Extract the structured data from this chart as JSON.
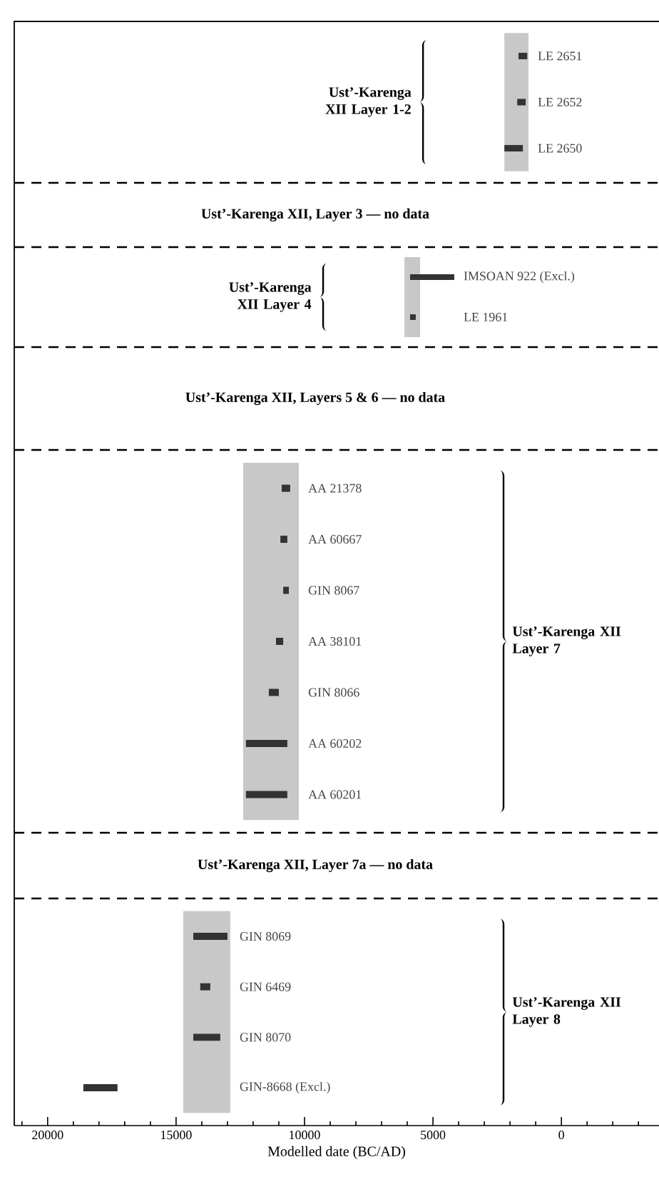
{
  "chart_data": [
    {
      "type": "bar",
      "orientation": "horizontal",
      "categories": [
        "LE 2651",
        "LE 2652",
        "LE 2650"
      ],
      "base": [
        1330,
        1390,
        1500
      ],
      "values": [
        340,
        330,
        720
      ],
      "color": "#333333",
      "bands": [
        {
          "axis": "x",
          "from": 2220,
          "to": 1280,
          "color": "#c8c8c8"
        }
      ],
      "annotations": [
        "Ust’-Karenga XII Layer 1-2"
      ],
      "xlim": [
        21300,
        -3800
      ],
      "tick_labels": false
    },
    {
      "type": "other",
      "title": "Ust’-Karenga XII, Layer 3 — no data"
    },
    {
      "type": "bar",
      "orientation": "horizontal",
      "categories": [
        "IMSOAN 922 (Excl.)",
        "LE 1961"
      ],
      "base": [
        4170,
        5670
      ],
      "values": [
        1720,
        220
      ],
      "color": "#333333",
      "bands": [
        {
          "axis": "x",
          "from": 6110,
          "to": 5500,
          "color": "#c8c8c8"
        }
      ],
      "annotations": [
        "Ust’-Karenga XII Layer 4"
      ],
      "xlim": [
        21300,
        -3800
      ],
      "tick_labels": false
    },
    {
      "type": "other",
      "title": "Ust’-Karenga XII, Layers 5 & 6 — no data"
    },
    {
      "type": "bar",
      "orientation": "horizontal",
      "categories": [
        "AA 21378",
        "AA 60667",
        "GIN 8067",
        "AA 38101",
        "GIN 8066",
        "AA 60202",
        "AA 60201"
      ],
      "base": [
        10560,
        10670,
        10610,
        10830,
        11000,
        10670,
        10670
      ],
      "values": [
        330,
        270,
        220,
        280,
        390,
        1610,
        1610
      ],
      "color": "#333333",
      "bands": [
        {
          "axis": "x",
          "from": 12390,
          "to": 10220,
          "color": "#c8c8c8"
        }
      ],
      "annotations": [
        "Ust’-Karenga XII Layer 7"
      ],
      "xlim": [
        21300,
        -3800
      ],
      "tick_labels": false
    },
    {
      "type": "other",
      "title": "Ust’-Karenga XII, Layer 7a — no data"
    },
    {
      "type": "bar",
      "orientation": "horizontal",
      "categories": [
        "GIN 8069",
        "GIN 6469",
        "GIN 8070",
        "GIN-8668 (Excl.)"
      ],
      "base": [
        13000,
        13670,
        13280,
        17280
      ],
      "values": [
        1330,
        390,
        1050,
        1330
      ],
      "color": "#333333",
      "bands": [
        {
          "axis": "x",
          "from": 14720,
          "to": 12890,
          "color": "#c8c8c8"
        }
      ],
      "annotations": [
        "Ust’-Karenga XII Layer 8"
      ],
      "xlabel": "Modelled date (BC/AD)",
      "xlim": [
        21300,
        -3800
      ],
      "xticks": [
        {
          "value": 21000,
          "label": null
        },
        20000,
        {
          "value": 19000,
          "label": null
        },
        {
          "value": 18000,
          "label": null
        },
        {
          "value": 17000,
          "label": null
        },
        {
          "value": 16000,
          "label": null
        },
        15000,
        {
          "value": 14000,
          "label": null
        },
        {
          "value": 13000,
          "label": null
        },
        {
          "value": 12000,
          "label": null
        },
        {
          "value": 11000,
          "label": null
        },
        10000,
        {
          "value": 9000,
          "label": null
        },
        {
          "value": 8000,
          "label": null
        },
        {
          "value": 7000,
          "label": null
        },
        {
          "value": 6000,
          "label": null
        },
        5000,
        {
          "value": 4000,
          "label": null
        },
        {
          "value": 3000,
          "label": null
        },
        {
          "value": 2000,
          "label": null
        },
        {
          "value": 1000,
          "label": null
        },
        0,
        {
          "value": -1000,
          "label": null
        },
        {
          "value": -2000,
          "label": null
        },
        {
          "value": -3000,
          "label": null
        }
      ],
      "tick_labels": "x"
    }
  ]
}
